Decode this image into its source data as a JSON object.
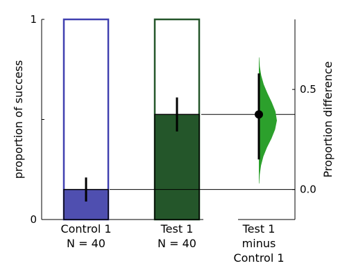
{
  "chart_data": [
    {
      "type": "bar",
      "title": "",
      "ylabel": "proportion of success",
      "ylim": [
        0,
        1
      ],
      "yticks": [
        {
          "value": 0,
          "label": "0"
        },
        {
          "value": 0.5,
          "label": ""
        },
        {
          "value": 1,
          "label": "1"
        }
      ],
      "categories": [
        {
          "name": "Control 1",
          "n_label": "N = 40"
        },
        {
          "name": "Test 1",
          "n_label": "N = 40"
        }
      ],
      "values": [
        0.15,
        0.525
      ],
      "error_bars": [
        [
          0.09,
          0.21
        ],
        [
          0.44,
          0.61
        ]
      ],
      "colors": [
        "#4f4fb0",
        "#24562a"
      ],
      "edge_colors": [
        "#4040b0",
        "#24562a"
      ],
      "grid": false
    },
    {
      "type": "area",
      "title": "",
      "ylabel": "Proportion difference",
      "yticks": [
        {
          "value": 0.0,
          "label": "0.0"
        },
        {
          "value": 0.5,
          "label": "0.5"
        }
      ],
      "ylim": [
        -0.15,
        0.85
      ],
      "category": "Test 1\nminus\nControl 1",
      "category_lines": [
        "Test 1",
        "minus",
        "Control 1"
      ],
      "mean_difference": 0.375,
      "ci": [
        0.15,
        0.58
      ],
      "distribution_range": [
        0.03,
        0.66
      ],
      "distribution_density": [
        0.02,
        0.05,
        0.12,
        0.25,
        0.45,
        0.7,
        0.9,
        1.0,
        0.92,
        0.72,
        0.48,
        0.27,
        0.13,
        0.05,
        0.02
      ],
      "color": "#2ca02c",
      "grid": false
    }
  ]
}
